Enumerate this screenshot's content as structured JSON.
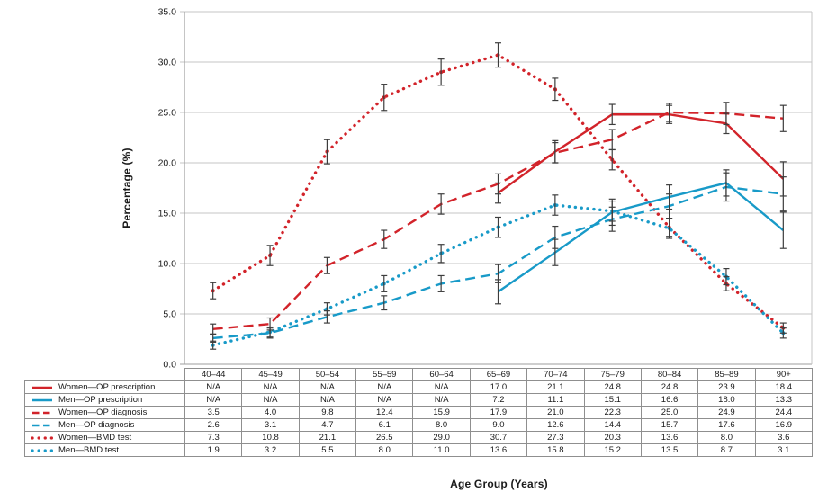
{
  "chart_data": {
    "type": "line",
    "title": "",
    "xlabel": "Age Group (Years)",
    "ylabel": "Percentage (%)",
    "ylim": [
      0,
      35
    ],
    "ytick_step": 5,
    "grid": "horizontal",
    "legend_position": "table-left",
    "error_bars": true,
    "na_text": "N/A",
    "categories": [
      "40–44",
      "45–49",
      "50–54",
      "55–59",
      "60–64",
      "65–69",
      "70–74",
      "75–79",
      "80–84",
      "85–89",
      "90+"
    ],
    "series": [
      {
        "name": "Women—OP prescription",
        "color": "#d2232a",
        "style": "solid",
        "values": [
          null,
          null,
          null,
          null,
          null,
          17.0,
          21.1,
          24.8,
          24.8,
          23.9,
          18.4
        ],
        "errors": [
          null,
          null,
          null,
          null,
          null,
          1.0,
          1.1,
          1.0,
          0.9,
          1.0,
          1.7
        ]
      },
      {
        "name": "Men—OP prescription",
        "color": "#189ac8",
        "style": "solid",
        "values": [
          null,
          null,
          null,
          null,
          null,
          7.2,
          11.1,
          15.1,
          16.6,
          18.0,
          13.3
        ],
        "errors": [
          null,
          null,
          null,
          null,
          null,
          1.2,
          1.3,
          1.3,
          1.2,
          1.3,
          1.8
        ]
      },
      {
        "name": "Women—OP diagnosis",
        "color": "#d2232a",
        "style": "dashed",
        "values": [
          3.5,
          4.0,
          9.8,
          12.4,
          15.9,
          17.9,
          21.0,
          22.3,
          25.0,
          24.9,
          24.4
        ],
        "errors": [
          0.5,
          0.6,
          0.8,
          0.9,
          1.0,
          1.0,
          1.0,
          1.0,
          0.9,
          1.1,
          1.3
        ]
      },
      {
        "name": "Men—OP diagnosis",
        "color": "#189ac8",
        "style": "dashed",
        "values": [
          2.6,
          3.1,
          4.7,
          6.1,
          8.0,
          9.0,
          12.6,
          14.4,
          15.7,
          17.6,
          16.9
        ],
        "errors": [
          0.4,
          0.5,
          0.6,
          0.7,
          0.8,
          0.9,
          1.1,
          1.2,
          1.2,
          1.4,
          1.7
        ]
      },
      {
        "name": "Women—BMD test",
        "color": "#d2232a",
        "style": "dotted",
        "values": [
          7.3,
          10.8,
          21.1,
          26.5,
          29.0,
          30.7,
          27.3,
          20.3,
          13.6,
          8.0,
          3.6
        ],
        "errors": [
          0.8,
          1.0,
          1.2,
          1.3,
          1.3,
          1.2,
          1.1,
          1.0,
          0.9,
          0.7,
          0.5
        ]
      },
      {
        "name": "Men—BMD test",
        "color": "#189ac8",
        "style": "dotted",
        "values": [
          1.9,
          3.2,
          5.5,
          8.0,
          11.0,
          13.6,
          15.8,
          15.2,
          13.5,
          8.7,
          3.1
        ],
        "errors": [
          0.4,
          0.5,
          0.6,
          0.8,
          0.9,
          1.0,
          1.0,
          1.0,
          1.0,
          0.8,
          0.5
        ]
      }
    ],
    "colors": {
      "women": "#d2232a",
      "men": "#189ac8",
      "grid": "#c6c6c6",
      "axis": "#9e9e9e",
      "error_bar": "#3d3d3d",
      "table_border": "#8f8f8f",
      "text": "#1a1a1a"
    }
  }
}
